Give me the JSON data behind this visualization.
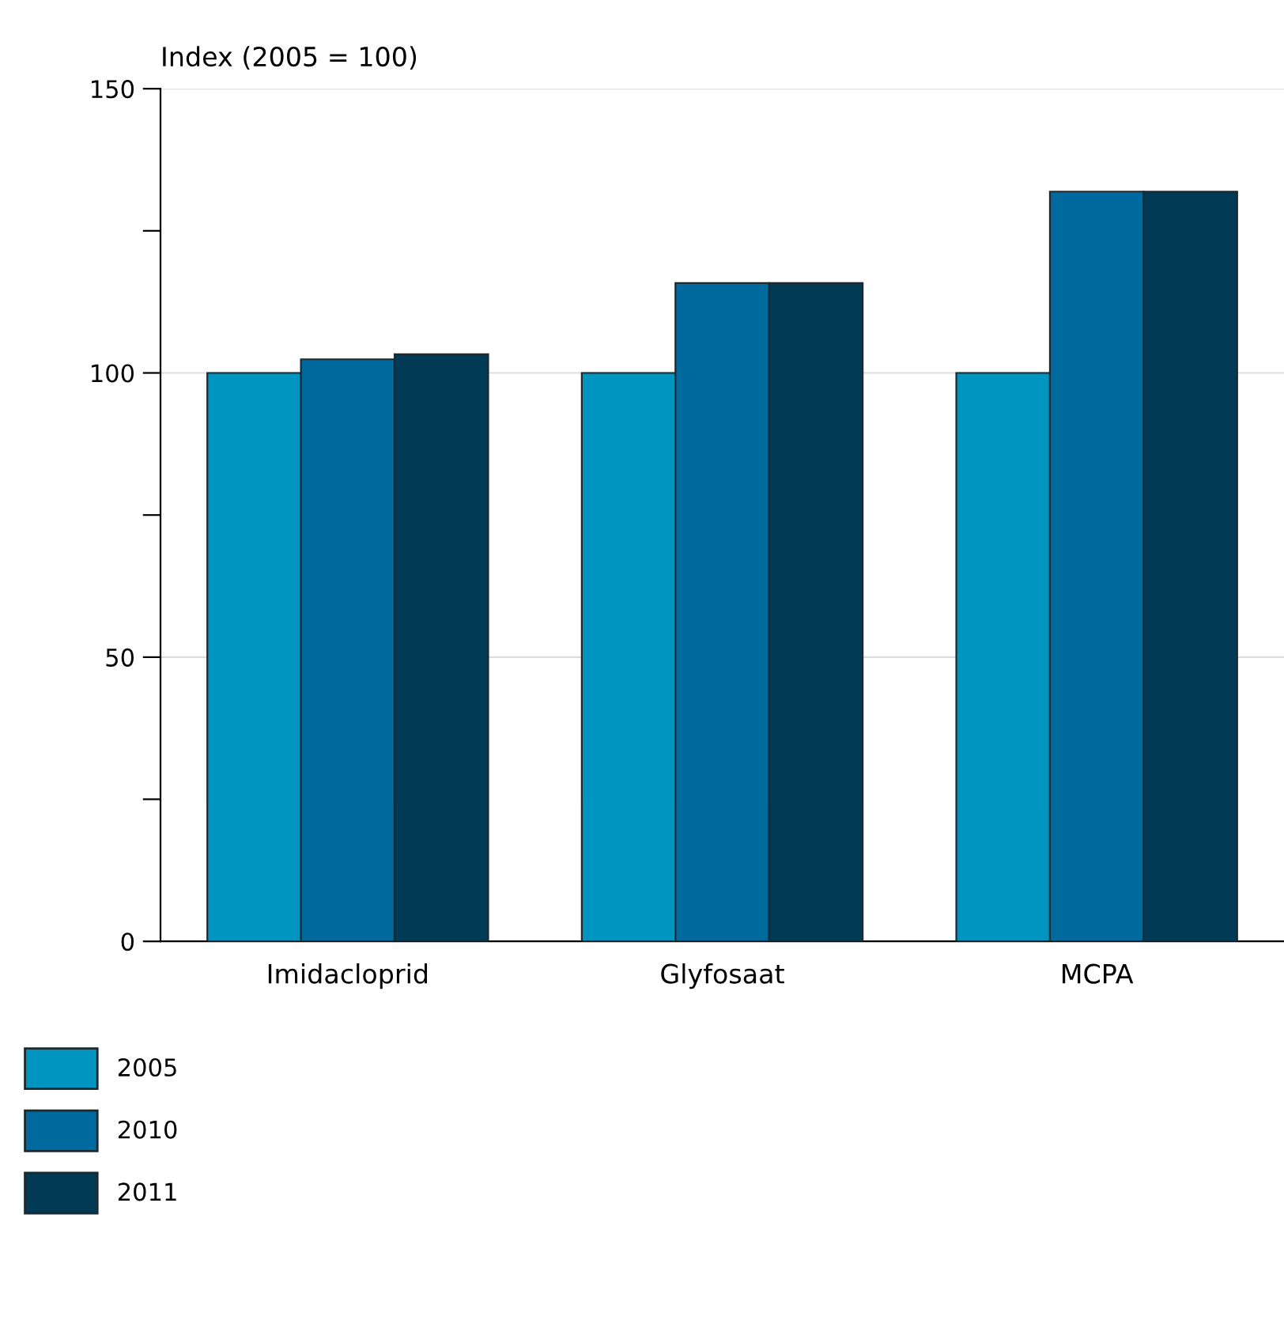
{
  "chart_data": {
    "type": "bar",
    "ylabel": "Index (2005 = 100)",
    "categories": [
      "Imidacloprid",
      "Glyfosaat",
      "MCPA"
    ],
    "series": [
      {
        "name": "2005",
        "color": "#0095c0",
        "values": [
          100,
          100,
          100
        ]
      },
      {
        "name": "2010",
        "color": "#006a9f",
        "values": [
          102.4,
          115.8,
          131.9
        ]
      },
      {
        "name": "2011",
        "color": "#003a54",
        "values": [
          103.3,
          115.8,
          131.9
        ]
      }
    ],
    "ylim": [
      0,
      150
    ],
    "yticks": [
      0,
      {
        "value": 25,
        "label": null
      },
      50,
      {
        "value": 75,
        "label": null
      },
      100,
      {
        "value": 125,
        "label": null
      },
      150
    ],
    "grid": "y",
    "legend": "bottom left"
  }
}
